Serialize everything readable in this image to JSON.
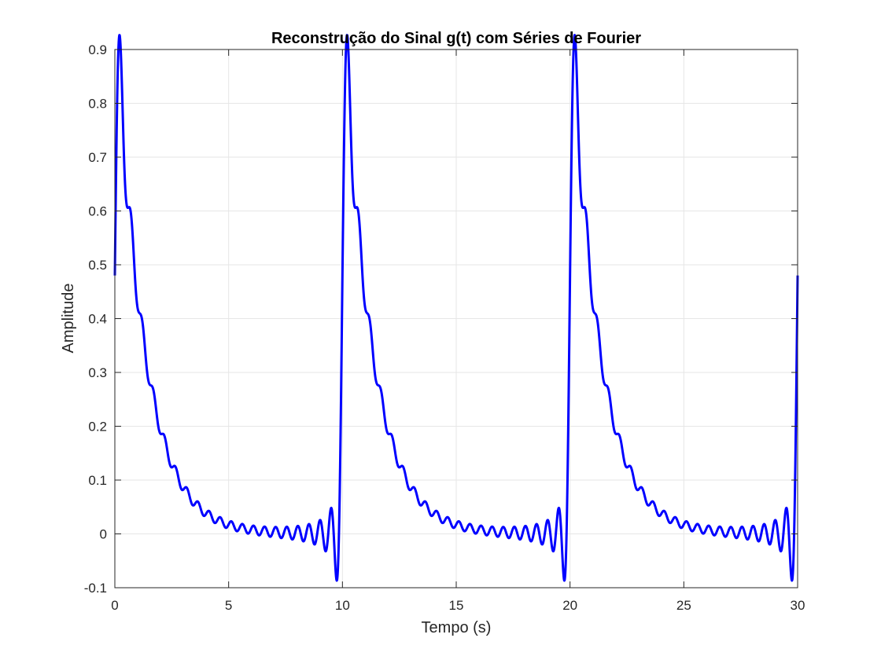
{
  "chart_data": {
    "type": "line",
    "title": "Reconstrução do Sinal g(t) com Séries de Fourier",
    "xlabel": "Tempo (s)",
    "ylabel": "Amplitude",
    "xlim": [
      0,
      30
    ],
    "ylim": [
      -0.1,
      0.9
    ],
    "xticks": [
      0,
      5,
      10,
      15,
      20,
      25,
      30
    ],
    "xtick_labels": [
      "0",
      "5",
      "10",
      "15",
      "20",
      "25",
      "30"
    ],
    "yticks": [
      -0.1,
      0,
      0.1,
      0.2,
      0.3,
      0.4,
      0.5,
      0.6,
      0.7,
      0.8,
      0.9
    ],
    "ytick_labels": [
      "-0.1",
      "0",
      "0.1",
      "0.2",
      "0.3",
      "0.4",
      "0.5",
      "0.6",
      "0.7",
      "0.8",
      "0.9"
    ],
    "grid": true,
    "legend": "none",
    "series": [
      {
        "color": "#0000ff",
        "period": 10,
        "decay_time_constant": 1.23,
        "fourier_terms": 20,
        "approx_points": [
          {
            "x": 0,
            "y": 0.48
          },
          {
            "x": 0.25,
            "y": 0.9
          },
          {
            "x": 0.6,
            "y": 0.54
          },
          {
            "x": 1.1,
            "y": 0.34
          },
          {
            "x": 1.6,
            "y": 0.2
          },
          {
            "x": 2.1,
            "y": 0.13
          },
          {
            "x": 2.6,
            "y": 0.08
          },
          {
            "x": 3.1,
            "y": 0.05
          },
          {
            "x": 4.1,
            "y": 0.02
          },
          {
            "x": 6.0,
            "y": 0.005
          },
          {
            "x": 9.45,
            "y": 0.048
          },
          {
            "x": 9.7,
            "y": -0.085
          },
          {
            "x": 10.0,
            "y": 0.48
          },
          {
            "x": 10.25,
            "y": 0.9
          }
        ]
      }
    ]
  },
  "colors": {
    "line": "#0000ff",
    "grid": "#e6e6e6",
    "axes": "#262626",
    "background": "#ffffff"
  }
}
